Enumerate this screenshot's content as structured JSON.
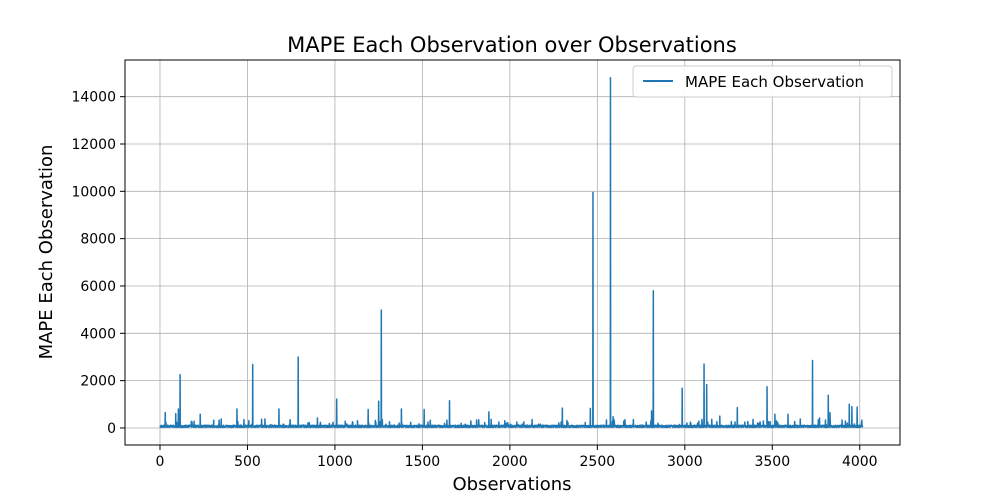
{
  "chart_data": {
    "type": "line",
    "title": "MAPE Each Observation over Observations",
    "xlabel": "Observations",
    "ylabel": "MAPE Each Observation",
    "xlim": [
      -200,
      4230
    ],
    "ylim": [
      -720,
      15550
    ],
    "xticks": [
      0,
      500,
      1000,
      1500,
      2000,
      2500,
      3000,
      3500,
      4000
    ],
    "yticks": [
      0,
      2000,
      4000,
      6000,
      8000,
      10000,
      12000,
      14000
    ],
    "grid": true,
    "legend_position": "top-right",
    "baseline": 120,
    "n_points": 4017,
    "series": [
      {
        "name": "MAPE Each Observation",
        "color": "#1f77b4",
        "spikes": [
          [
            30,
            650
          ],
          [
            90,
            600
          ],
          [
            105,
            800
          ],
          [
            115,
            2250
          ],
          [
            230,
            580
          ],
          [
            350,
            380
          ],
          [
            440,
            800
          ],
          [
            480,
            350
          ],
          [
            530,
            2680
          ],
          [
            600,
            380
          ],
          [
            680,
            800
          ],
          [
            790,
            3000
          ],
          [
            900,
            420
          ],
          [
            1010,
            1220
          ],
          [
            1100,
            250
          ],
          [
            1190,
            780
          ],
          [
            1250,
            1130
          ],
          [
            1265,
            4980
          ],
          [
            1380,
            800
          ],
          [
            1510,
            780
          ],
          [
            1640,
            330
          ],
          [
            1655,
            1150
          ],
          [
            1880,
            680
          ],
          [
            2040,
            250
          ],
          [
            2300,
            840
          ],
          [
            2460,
            830
          ],
          [
            2475,
            9950
          ],
          [
            2575,
            14800
          ],
          [
            2590,
            480
          ],
          [
            2810,
            720
          ],
          [
            2820,
            5800
          ],
          [
            2985,
            1680
          ],
          [
            3080,
            280
          ],
          [
            3110,
            2700
          ],
          [
            3125,
            1830
          ],
          [
            3200,
            500
          ],
          [
            3300,
            860
          ],
          [
            3470,
            1740
          ],
          [
            3515,
            580
          ],
          [
            3590,
            580
          ],
          [
            3660,
            380
          ],
          [
            3730,
            2850
          ],
          [
            3770,
            420
          ],
          [
            3820,
            1380
          ],
          [
            3830,
            650
          ],
          [
            3940,
            1000
          ],
          [
            3955,
            900
          ],
          [
            3985,
            880
          ],
          [
            4010,
            250
          ]
        ]
      }
    ]
  }
}
